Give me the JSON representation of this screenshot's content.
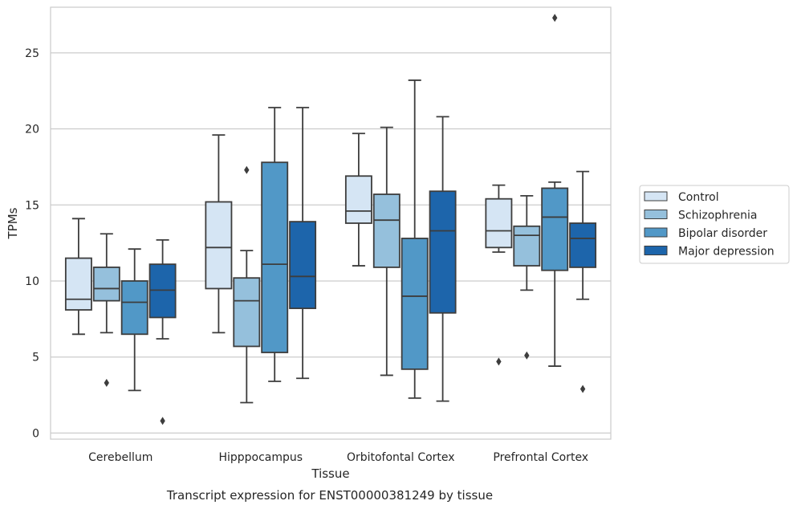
{
  "chart_data": {
    "type": "boxplot",
    "caption": "Transcript expression for ENST00000381249 by tissue",
    "xlabel": "Tissue",
    "ylabel": "TPMs",
    "ylim": [
      -0.4,
      28.0
    ],
    "yticks": [
      0,
      5,
      10,
      15,
      20,
      25
    ],
    "grid": "horizontal",
    "legend_position": "right",
    "categories": [
      "Cerebellum",
      "Hipppocampus",
      "Orbitofontal Cortex",
      "Prefrontal Cortex"
    ],
    "series": [
      {
        "name": "Control",
        "color": "#d5e5f4",
        "boxes": [
          {
            "whisker_low": 6.5,
            "q1": 8.1,
            "median": 8.8,
            "q3": 11.5,
            "whisker_high": 14.1,
            "outliers": []
          },
          {
            "whisker_low": 6.6,
            "q1": 9.5,
            "median": 12.2,
            "q3": 15.2,
            "whisker_high": 19.6,
            "outliers": []
          },
          {
            "whisker_low": 11.0,
            "q1": 13.8,
            "median": 14.6,
            "q3": 16.9,
            "whisker_high": 19.7,
            "outliers": []
          },
          {
            "whisker_low": 11.9,
            "q1": 12.2,
            "median": 13.3,
            "q3": 15.4,
            "whisker_high": 16.3,
            "outliers": [
              4.7
            ]
          }
        ]
      },
      {
        "name": "Schizophrenia",
        "color": "#95c0dc",
        "boxes": [
          {
            "whisker_low": 6.6,
            "q1": 8.7,
            "median": 9.5,
            "q3": 10.9,
            "whisker_high": 13.1,
            "outliers": [
              3.3
            ]
          },
          {
            "whisker_low": 2.0,
            "q1": 5.7,
            "median": 8.7,
            "q3": 10.2,
            "whisker_high": 12.0,
            "outliers": [
              17.3
            ]
          },
          {
            "whisker_low": 3.8,
            "q1": 10.9,
            "median": 14.0,
            "q3": 15.7,
            "whisker_high": 20.1,
            "outliers": []
          },
          {
            "whisker_low": 9.4,
            "q1": 11.0,
            "median": 13.0,
            "q3": 13.6,
            "whisker_high": 15.6,
            "outliers": [
              5.1
            ]
          }
        ]
      },
      {
        "name": "Bipolar disorder",
        "color": "#5198c7",
        "boxes": [
          {
            "whisker_low": 2.8,
            "q1": 6.5,
            "median": 8.6,
            "q3": 10.0,
            "whisker_high": 12.1,
            "outliers": []
          },
          {
            "whisker_low": 3.4,
            "q1": 5.3,
            "median": 11.1,
            "q3": 17.8,
            "whisker_high": 21.4,
            "outliers": []
          },
          {
            "whisker_low": 2.3,
            "q1": 4.2,
            "median": 9.0,
            "q3": 12.8,
            "whisker_high": 23.2,
            "outliers": []
          },
          {
            "whisker_low": 4.4,
            "q1": 10.7,
            "median": 14.2,
            "q3": 16.1,
            "whisker_high": 16.5,
            "outliers": [
              27.3
            ]
          }
        ]
      },
      {
        "name": "Major depression",
        "color": "#1d65ab",
        "boxes": [
          {
            "whisker_low": 6.2,
            "q1": 7.6,
            "median": 9.4,
            "q3": 11.1,
            "whisker_high": 12.7,
            "outliers": [
              0.8
            ]
          },
          {
            "whisker_low": 3.6,
            "q1": 8.2,
            "median": 10.3,
            "q3": 13.9,
            "whisker_high": 21.4,
            "outliers": []
          },
          {
            "whisker_low": 2.1,
            "q1": 7.9,
            "median": 13.3,
            "q3": 15.9,
            "whisker_high": 20.8,
            "outliers": []
          },
          {
            "whisker_low": 8.8,
            "q1": 10.9,
            "median": 12.8,
            "q3": 13.8,
            "whisker_high": 17.2,
            "outliers": [
              2.9
            ]
          }
        ]
      }
    ]
  }
}
